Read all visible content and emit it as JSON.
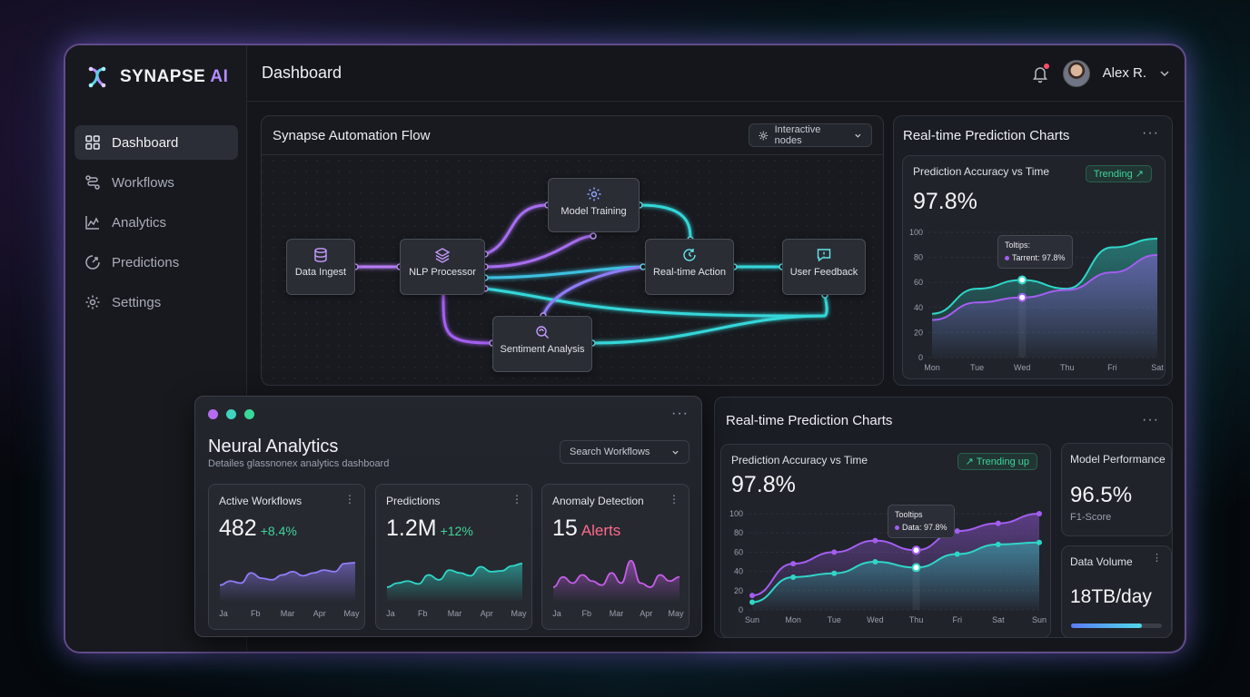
{
  "app": {
    "brand_a": "SYNAPSE",
    "brand_b": "AI",
    "page_title": "Dashboard"
  },
  "sidebar": {
    "items": [
      {
        "label": "Dashboard",
        "icon": "grid-icon",
        "active": true
      },
      {
        "label": "Workflows",
        "icon": "workflow-icon"
      },
      {
        "label": "Analytics",
        "icon": "analytics-icon"
      },
      {
        "label": "Predictions",
        "icon": "predictions-icon"
      },
      {
        "label": "Settings",
        "icon": "gear-icon"
      }
    ]
  },
  "user": {
    "name": "Alex R."
  },
  "flow": {
    "title": "Synapse Automation Flow",
    "mode_label": "Interactive nodes",
    "nodes": [
      "Data Ingest",
      "NLP Processor",
      "Model Training",
      "Real-time Action",
      "User Feedback",
      "Sentiment Analysis"
    ]
  },
  "pred_top": {
    "title": "Real-time Prediction Charts",
    "card_title": "Prediction Accuracy vs Time",
    "badge": "Trending",
    "value": "97.8%",
    "tooltip_title": "Toltips:",
    "tooltip_text": "Tarrent: 97.8%"
  },
  "neural": {
    "title": "Neural Analytics",
    "subtitle": "Detailes glassnonex analytics dashboard",
    "search_label": "Search Workflows",
    "cards": [
      {
        "label": "Active Workflows",
        "value": "482",
        "delta": "+8.4%",
        "color": "#8f7cf7",
        "delta_color": "#3fd49a"
      },
      {
        "label": "Predictions",
        "value": "1.2M",
        "delta": "+12%",
        "color": "#2fd6c8",
        "delta_color": "#3fd49a"
      },
      {
        "label": "Anomaly Detection",
        "value": "15",
        "delta": "Alerts",
        "color": "#c45ee8",
        "delta_color": "#ff6b8a"
      }
    ],
    "months": [
      "Ja",
      "Fb",
      "Mar",
      "Apr",
      "May"
    ]
  },
  "pred_bottom": {
    "title": "Real-time Prediction Charts",
    "card_title": "Prediction Accuracy vs Time",
    "badge": "Trending up",
    "value": "97.8%",
    "tooltip_title": "Tooltips",
    "tooltip_text": "Data: 97.8%"
  },
  "model_perf": {
    "title": "Model Performance",
    "value": "96.5%",
    "sub": "F1-Score"
  },
  "data_volume": {
    "title": "Data Volume",
    "value": "18TB/day",
    "fill": 0.78
  },
  "chart_data": [
    {
      "type": "area",
      "title": "Prediction Accuracy vs Time",
      "categories": [
        "Mon",
        "Tue",
        "Wed",
        "Thu",
        "Fri",
        "Sat"
      ],
      "ylim": [
        0,
        100
      ],
      "yticks": [
        0,
        20,
        40,
        60,
        80,
        100
      ],
      "series": [
        {
          "values": [
            35,
            55,
            62,
            55,
            88,
            95
          ],
          "color": "#2fd6c8"
        },
        {
          "values": [
            30,
            44,
            48,
            54,
            68,
            82
          ],
          "color": "#a35ef0"
        }
      ]
    },
    {
      "type": "area",
      "title": "Prediction Accuracy vs Time",
      "categories": [
        "Sun",
        "Mon",
        "Tue",
        "Wed",
        "Thu",
        "Fri",
        "Sat",
        "Sun"
      ],
      "ylim": [
        0,
        100
      ],
      "yticks": [
        0,
        20,
        40,
        60,
        80,
        100
      ],
      "series": [
        {
          "values": [
            15,
            48,
            60,
            72,
            62,
            82,
            90,
            100
          ],
          "color": "#a35ef0"
        },
        {
          "values": [
            8,
            34,
            38,
            50,
            44,
            58,
            68,
            70
          ],
          "color": "#2fd6c8"
        }
      ]
    }
  ]
}
